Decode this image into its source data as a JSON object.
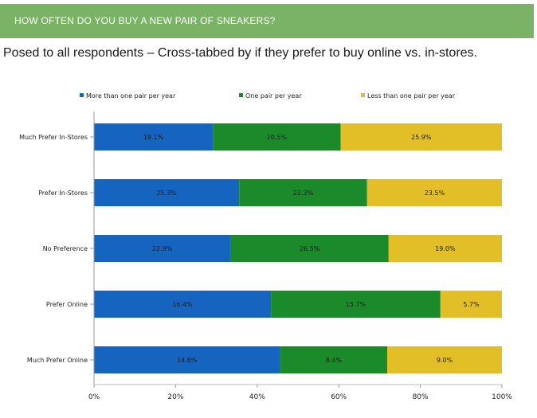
{
  "banner": {
    "title": "HOW OFTEN DO YOU BUY A NEW PAIR OF SNEAKERS?"
  },
  "subtitle": "Posed to all respondents – Cross-tabbed by if they prefer to buy online vs. in-stores.",
  "colors": {
    "banner": "#7ab366",
    "series": [
      "#1565c0",
      "#1a8a2a",
      "#e2bf26"
    ]
  },
  "chart_data": {
    "type": "bar",
    "orientation": "horizontal",
    "stacked": "percent",
    "categories": [
      "Much Prefer In-Stores",
      "Prefer In-Stores",
      "No Preference",
      "Prefer Online",
      "Much Prefer Online"
    ],
    "series": [
      {
        "name": "More than one pair per year",
        "values": [
          19.1,
          25.3,
          22.9,
          16.4,
          14.6
        ],
        "labels": [
          "19.1%",
          "25.3%",
          "22.9%",
          "16.4%",
          "14.6%"
        ]
      },
      {
        "name": "One pair per year",
        "values": [
          20.5,
          22.3,
          26.5,
          15.7,
          8.4
        ],
        "labels": [
          "20.5%",
          "22.3%",
          "26.5%",
          "15.7%",
          "8.4%"
        ]
      },
      {
        "name": "Less than one pair per year",
        "values": [
          25.9,
          23.5,
          19.0,
          5.7,
          9.0
        ],
        "labels": [
          "25.9%",
          "23.5%",
          "19.0%",
          "5.7%",
          "9.0%"
        ]
      }
    ],
    "xticks": [
      "0%",
      "20%",
      "40%",
      "60%",
      "80%",
      "100%"
    ],
    "xlim": [
      0,
      100
    ],
    "legend": "top",
    "grid": false
  }
}
